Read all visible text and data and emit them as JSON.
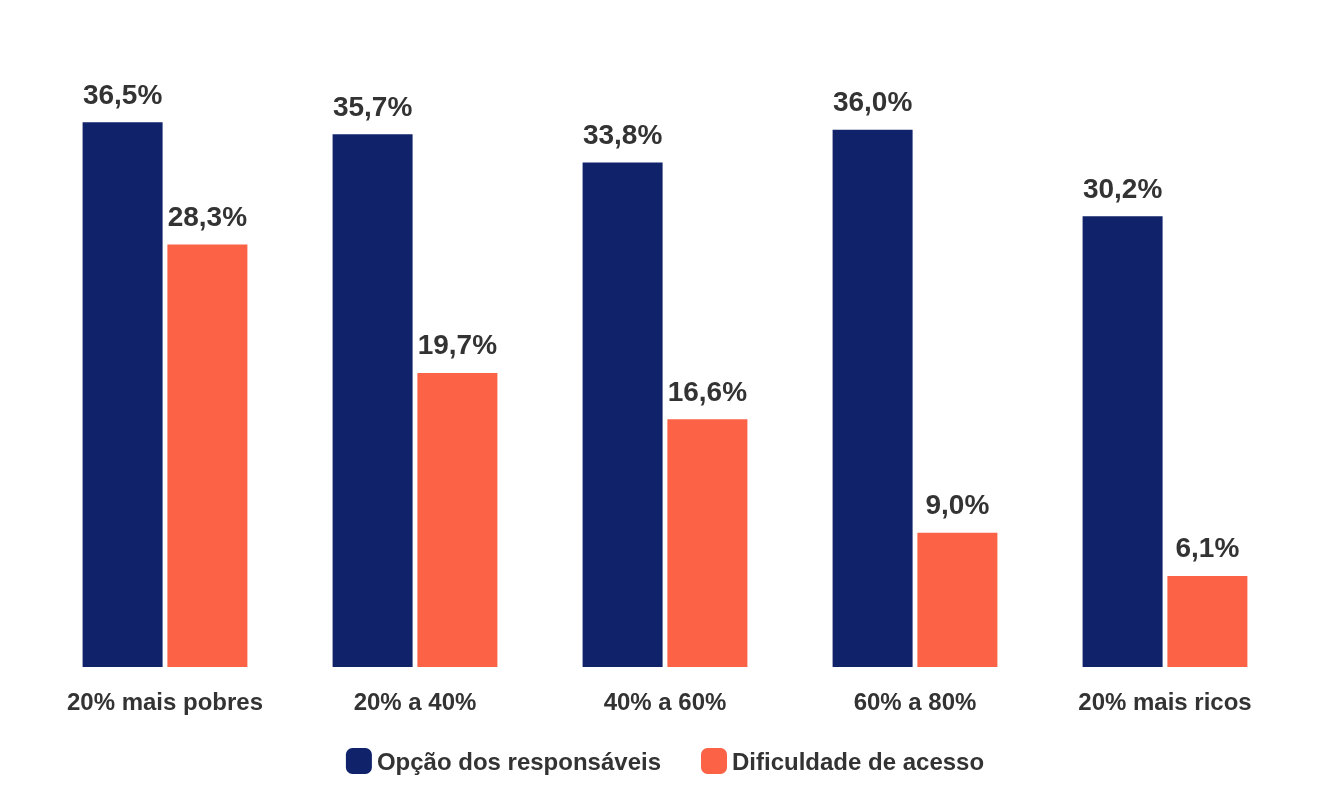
{
  "chart_data": {
    "type": "bar",
    "categories": [
      "20% mais pobres",
      "20% a 40%",
      "40% a 60%",
      "60% a 80%",
      "20% mais ricos"
    ],
    "series": [
      {
        "name": "Opção dos responsáveis",
        "color": "#10226a",
        "values": [
          36.5,
          35.7,
          33.8,
          36.0,
          30.2
        ],
        "value_labels": [
          "36,5%",
          "35,7%",
          "33,8%",
          "36,0%",
          "30,2%"
        ]
      },
      {
        "name": "Dificuldade de acesso",
        "color": "#fb6246",
        "values": [
          28.3,
          19.7,
          16.6,
          9.0,
          6.1
        ],
        "value_labels": [
          "28,3%",
          "19,7%",
          "16,6%",
          "9,0%",
          "6,1%"
        ]
      }
    ],
    "legend": "bottom"
  }
}
